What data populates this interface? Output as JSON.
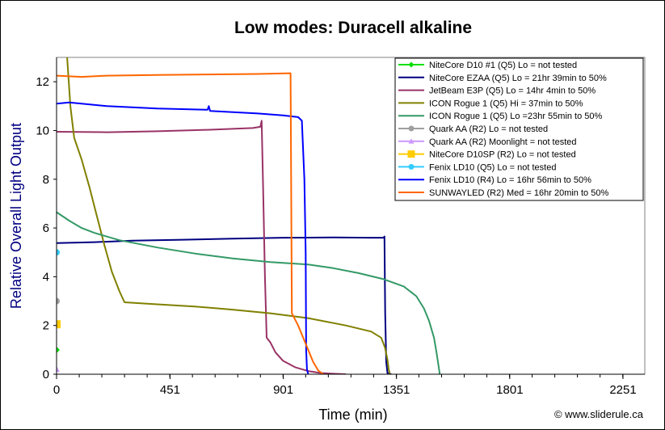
{
  "chart_data": {
    "type": "line",
    "title": "Low modes: Duracell alkaline",
    "xlabel": "Time (min)",
    "ylabel": "Relative Overall Light Output",
    "xlim": [
      0,
      2400
    ],
    "ylim": [
      0,
      13
    ],
    "xticks": [
      0,
      451,
      901,
      1351,
      1801,
      2251
    ],
    "yticks": [
      0,
      2,
      4,
      6,
      8,
      10,
      12
    ],
    "xtick_labels": [
      "0",
      "451",
      "901",
      "1351",
      "1801",
      "2251"
    ],
    "ytick_labels": [
      "0",
      "2",
      "4",
      "6",
      "8",
      "10",
      "12"
    ],
    "grid": false,
    "legend_position": "top-right",
    "credit": "© www.sliderule.ca",
    "series": [
      {
        "name": "NiteCore D10 #1 (Q5) Lo = not tested",
        "color": "#00e000",
        "marker": "diamond",
        "points": [
          [
            0,
            1.0
          ]
        ]
      },
      {
        "name": "NiteCore EZAA (Q5) Lo = 21hr 39min to 50%",
        "color": "#000080",
        "marker": "none",
        "points": [
          [
            0,
            5.38
          ],
          [
            150,
            5.42
          ],
          [
            300,
            5.48
          ],
          [
            500,
            5.52
          ],
          [
            700,
            5.56
          ],
          [
            900,
            5.6
          ],
          [
            1100,
            5.61
          ],
          [
            1250,
            5.6
          ],
          [
            1300,
            5.6
          ],
          [
            1303,
            5.65
          ],
          [
            1306,
            2.5
          ],
          [
            1310,
            0.5
          ],
          [
            1315,
            0.05
          ],
          [
            1330,
            0
          ]
        ]
      },
      {
        "name": "JetBeam E3P (Q5) Lo = 14hr 4min to 50%",
        "color": "#993366",
        "marker": "none",
        "points": [
          [
            0,
            9.95
          ],
          [
            200,
            9.93
          ],
          [
            400,
            9.97
          ],
          [
            600,
            10.03
          ],
          [
            780,
            10.1
          ],
          [
            810,
            10.15
          ],
          [
            815,
            10.4
          ],
          [
            820,
            8.0
          ],
          [
            828,
            4.0
          ],
          [
            835,
            1.5
          ],
          [
            850,
            1.3
          ],
          [
            870,
            0.9
          ],
          [
            900,
            0.55
          ],
          [
            950,
            0.28
          ],
          [
            1000,
            0.13
          ],
          [
            1050,
            0.05
          ],
          [
            1100,
            0.02
          ],
          [
            1150,
            0
          ]
        ]
      },
      {
        "name": "ICON Rogue 1 (Q5) Hi = 37min to 50%",
        "color": "#808000",
        "marker": "none",
        "points": [
          [
            42,
            13.0
          ],
          [
            55,
            11.0
          ],
          [
            70,
            9.7
          ],
          [
            100,
            8.8
          ],
          [
            130,
            7.7
          ],
          [
            160,
            6.5
          ],
          [
            190,
            5.3
          ],
          [
            220,
            4.2
          ],
          [
            250,
            3.4
          ],
          [
            270,
            2.95
          ],
          [
            400,
            2.87
          ],
          [
            550,
            2.78
          ],
          [
            700,
            2.65
          ],
          [
            850,
            2.5
          ],
          [
            1000,
            2.3
          ],
          [
            1150,
            2.0
          ],
          [
            1250,
            1.75
          ],
          [
            1290,
            1.5
          ],
          [
            1305,
            1.1
          ],
          [
            1315,
            0.6
          ],
          [
            1320,
            0.2
          ],
          [
            1325,
            0
          ]
        ]
      },
      {
        "name": "ICON Rogue 1 (Q5) Lo =23hr 55min to 50%",
        "color": "#339966",
        "marker": "none",
        "points": [
          [
            0,
            6.65
          ],
          [
            50,
            6.3
          ],
          [
            100,
            6.0
          ],
          [
            150,
            5.8
          ],
          [
            250,
            5.5
          ],
          [
            400,
            5.2
          ],
          [
            550,
            4.95
          ],
          [
            700,
            4.75
          ],
          [
            850,
            4.6
          ],
          [
            1000,
            4.5
          ],
          [
            1100,
            4.35
          ],
          [
            1200,
            4.15
          ],
          [
            1300,
            3.9
          ],
          [
            1380,
            3.6
          ],
          [
            1430,
            3.2
          ],
          [
            1460,
            2.7
          ],
          [
            1480,
            2.2
          ],
          [
            1500,
            1.5
          ],
          [
            1510,
            0.9
          ],
          [
            1520,
            0.2
          ],
          [
            1523,
            0
          ]
        ]
      },
      {
        "name": "Quark AA (R2) Lo = not tested",
        "color": "#a0a0a0",
        "marker": "circle",
        "points": [
          [
            0,
            3.0
          ]
        ]
      },
      {
        "name": "Quark AA (R2) Moonlight = not tested",
        "color": "#cc99ff",
        "marker": "triangle",
        "points": [
          [
            0,
            0.2
          ]
        ]
      },
      {
        "name": "NiteCore D10SP (R2) Lo = not tested",
        "color": "#ffcc00",
        "marker": "square",
        "points": [
          [
            0,
            2.05
          ]
        ]
      },
      {
        "name": "Fenix LD10 (Q5) Lo = not tested",
        "color": "#33ccff",
        "marker": "circle",
        "points": [
          [
            0,
            5.0
          ]
        ]
      },
      {
        "name": "Fenix LD10 (R4) Lo = 16hr 56min to 50%",
        "color": "#0000ff",
        "marker": "none",
        "points": [
          [
            0,
            11.1
          ],
          [
            50,
            11.15
          ],
          [
            100,
            11.1
          ],
          [
            200,
            11.0
          ],
          [
            400,
            10.9
          ],
          [
            600,
            10.85
          ],
          [
            605,
            11.0
          ],
          [
            610,
            10.8
          ],
          [
            800,
            10.7
          ],
          [
            900,
            10.62
          ],
          [
            960,
            10.55
          ],
          [
            975,
            10.4
          ],
          [
            985,
            8.0
          ],
          [
            990,
            5.0
          ],
          [
            992,
            1.0
          ],
          [
            995,
            0.2
          ],
          [
            1000,
            0
          ]
        ]
      },
      {
        "name": "SUNWAYLED (R2) Med = 16hr 20min to 50%",
        "color": "#ff6600",
        "marker": "none",
        "points": [
          [
            0,
            12.25
          ],
          [
            100,
            12.2
          ],
          [
            200,
            12.25
          ],
          [
            400,
            12.28
          ],
          [
            600,
            12.3
          ],
          [
            800,
            12.32
          ],
          [
            930,
            12.35
          ],
          [
            935,
            2.5
          ],
          [
            960,
            2.0
          ],
          [
            980,
            1.5
          ],
          [
            1000,
            1.0
          ],
          [
            1020,
            0.5
          ],
          [
            1040,
            0.15
          ],
          [
            1060,
            0
          ]
        ]
      }
    ]
  }
}
